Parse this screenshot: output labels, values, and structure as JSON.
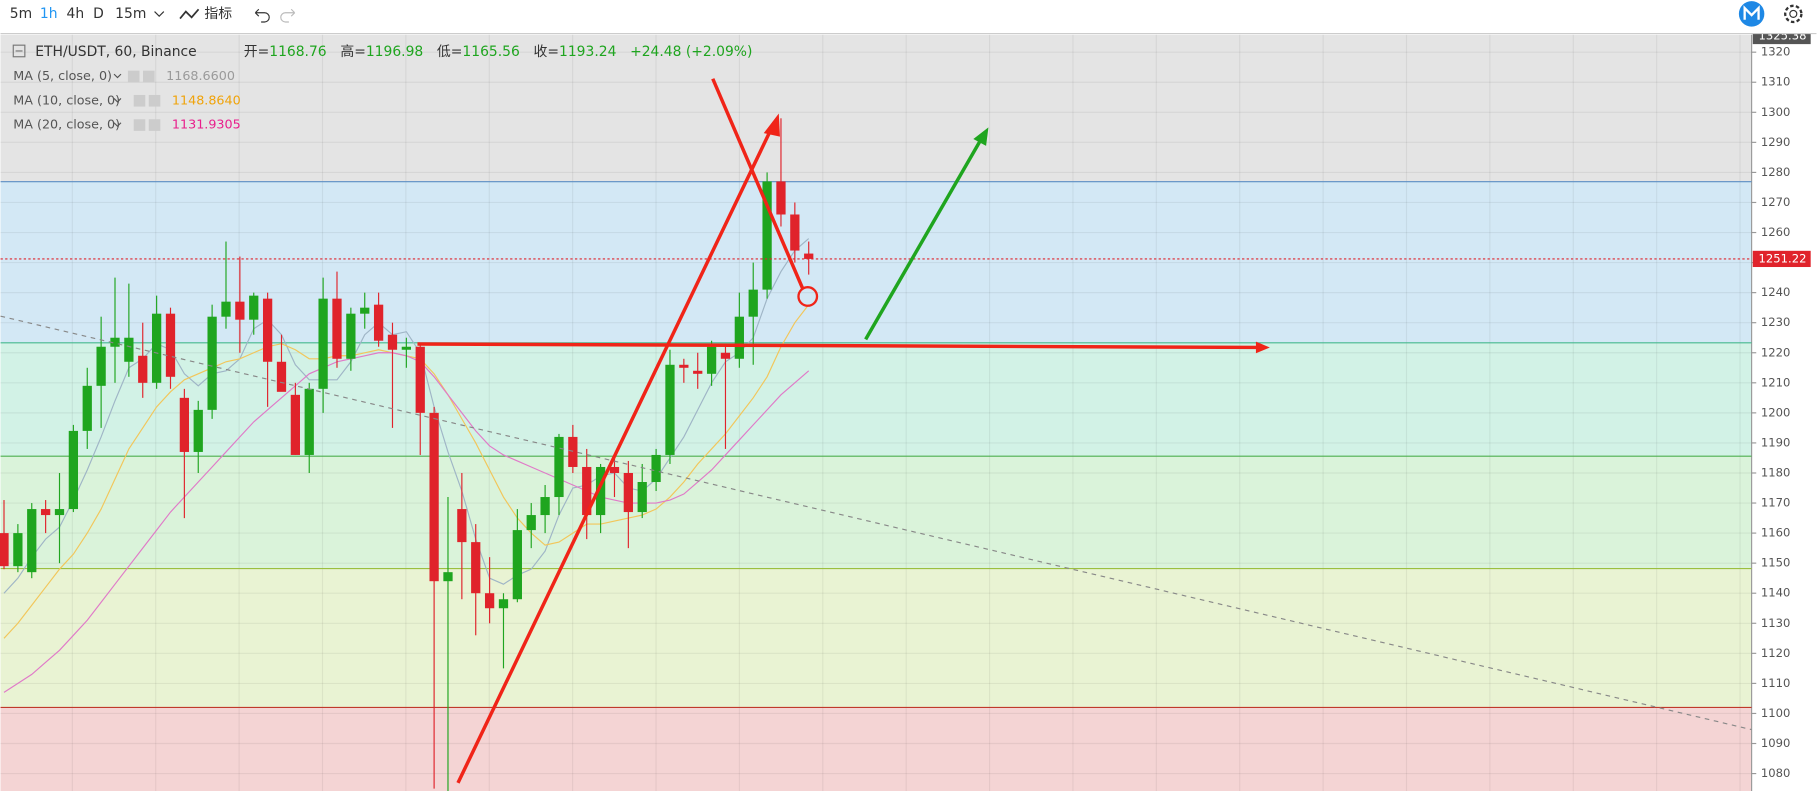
{
  "toolbar": {
    "intervals": [
      "5m",
      "1h",
      "4h",
      "D",
      "15m"
    ],
    "indicators": "指标"
  },
  "chart_data": {
    "type": "candlestick",
    "title": "ETH/USDT, 60, Binance",
    "readout": [
      {
        "label": "开=",
        "value": "1168.76"
      },
      {
        "label": "高=",
        "value": "1196.98"
      },
      {
        "label": "低=",
        "value": "1165.56"
      },
      {
        "label": "收=",
        "value": "1193.24"
      }
    ],
    "change": "+24.48 (+2.09%)",
    "up_color": "#1fa51f",
    "down_color": "#e0232b",
    "open": [
      1160,
      1149,
      1147,
      1168,
      1166,
      1168,
      1194,
      1209,
      1222,
      1217,
      1219,
      1210,
      1233,
      1205,
      1187,
      1201,
      1232,
      1237,
      1231,
      1238,
      1217,
      1206,
      1186,
      1208,
      1238,
      1218,
      1233,
      1236,
      1226,
      1221,
      1222,
      1200,
      1144,
      1168,
      1157,
      1140,
      1135,
      1138,
      1161,
      1166,
      1172,
      1192,
      1182,
      1166,
      1182,
      1180,
      1167,
      1177,
      1186,
      1216,
      1214,
      1213,
      1220,
      1218,
      1232,
      1241,
      1277,
      1266,
      1253
    ],
    "high": [
      1171,
      1163,
      1170,
      1171,
      1180,
      1196,
      1215,
      1232,
      1245,
      1243,
      1230,
      1239,
      1235,
      1208,
      1204,
      1236,
      1257,
      1252,
      1240,
      1240,
      1226,
      1210,
      1210,
      1245,
      1247,
      1235,
      1240,
      1240,
      1230,
      1225,
      1223,
      1202,
      1172,
      1180,
      1163,
      1152,
      1140,
      1168,
      1170,
      1176,
      1193,
      1196,
      1188,
      1183,
      1185,
      1184,
      1183,
      1188,
      1221,
      1218,
      1220,
      1224,
      1222,
      1240,
      1250,
      1280,
      1298,
      1270,
      1257
    ],
    "low": [
      1148,
      1147,
      1145,
      1160,
      1150,
      1167,
      1188,
      1195,
      1210,
      1212,
      1205,
      1208,
      1208,
      1165,
      1180,
      1198,
      1228,
      1220,
      1226,
      1202,
      1208,
      1186,
      1180,
      1200,
      1215,
      1214,
      1228,
      1222,
      1195,
      1215,
      1186,
      1075,
      1074,
      1138,
      1126,
      1130,
      1115,
      1137,
      1155,
      1160,
      1166,
      1180,
      1158,
      1160,
      1172,
      1155,
      1165,
      1174,
      1183,
      1210,
      1208,
      1209,
      1188,
      1215,
      1216,
      1238,
      1262,
      1250,
      1246
    ],
    "close": [
      1149,
      1160,
      1168,
      1166,
      1168,
      1194,
      1209,
      1222,
      1225,
      1225,
      1210,
      1233,
      1212,
      1187,
      1201,
      1232,
      1237,
      1231,
      1239,
      1217,
      1207,
      1186,
      1208,
      1238,
      1218,
      1233,
      1235,
      1224,
      1221,
      1222,
      1200,
      1144,
      1147,
      1157,
      1140,
      1135,
      1138,
      1161,
      1166,
      1172,
      1192,
      1182,
      1166,
      1182,
      1180,
      1167,
      1177,
      1186,
      1216,
      1215,
      1213,
      1222,
      1218,
      1232,
      1241,
      1277,
      1266,
      1254,
      1251.22
    ],
    "series": [
      {
        "name": "MA (5, close, 0)",
        "readout": "1168.6600",
        "color": "#9fb5c6",
        "readout_color": "#9a9a9a",
        "values": [
          1140,
          1145,
          1152,
          1158,
          1162,
          1171,
          1181,
          1192,
          1204,
          1215,
          1218,
          1223,
          1221,
          1213,
          1209,
          1213,
          1214,
          1218,
          1228,
          1231,
          1226,
          1216,
          1211,
          1211,
          1211,
          1217,
          1226,
          1230,
          1226,
          1227,
          1220,
          1202,
          1187,
          1174,
          1158,
          1145,
          1143,
          1146,
          1148,
          1154,
          1166,
          1175,
          1176,
          1179,
          1180,
          1175,
          1174,
          1178,
          1185,
          1192,
          1201,
          1210,
          1217,
          1220,
          1225,
          1238,
          1247,
          1254,
          1258
        ]
      },
      {
        "name": "MA (10, close, 0)",
        "readout": "1148.8640",
        "color": "#f2c65a",
        "readout_color": "#f0a30a",
        "values": [
          1125,
          1130,
          1136,
          1142,
          1148,
          1153,
          1160,
          1168,
          1178,
          1188,
          1195,
          1202,
          1207,
          1211,
          1213,
          1215,
          1217,
          1218,
          1220,
          1222,
          1223,
          1221,
          1218,
          1218,
          1219,
          1219,
          1220,
          1221,
          1220,
          1219,
          1218,
          1213,
          1206,
          1198,
          1190,
          1181,
          1172,
          1165,
          1160,
          1156,
          1157,
          1160,
          1163,
          1163,
          1164,
          1165,
          1166,
          1168,
          1172,
          1177,
          1183,
          1188,
          1193,
          1199,
          1205,
          1212,
          1222,
          1230,
          1236
        ]
      },
      {
        "name": "MA (20, close, 0)",
        "readout": "1131.9305",
        "color": "#e07ac8",
        "readout_color": "#e91e8c",
        "values": [
          1107,
          1110,
          1113,
          1117,
          1121,
          1126,
          1131,
          1137,
          1143,
          1149,
          1155,
          1161,
          1167,
          1172,
          1177,
          1182,
          1187,
          1192,
          1197,
          1201,
          1205,
          1209,
          1213,
          1215,
          1217,
          1218,
          1219,
          1220,
          1220,
          1219,
          1217,
          1212,
          1206,
          1200,
          1194,
          1189,
          1186,
          1184,
          1182,
          1180,
          1178,
          1176,
          1174,
          1172,
          1171,
          1170,
          1170,
          1170,
          1171,
          1173,
          1177,
          1181,
          1186,
          1191,
          1196,
          1201,
          1206,
          1210,
          1214
        ]
      }
    ],
    "levels": [
      1276.9,
      1223.3,
      1185.6,
      1148.2,
      1102
    ],
    "level_colors": [
      "#5b8ec4",
      "#46b98e",
      "#4caf50",
      "#9bbf3f",
      "#c0392b"
    ],
    "band_colors": [
      "#e4e4e4",
      "#d3e8f5",
      "#d2f2e6",
      "#daf3da",
      "#e9f3d3",
      "#f4d4d4"
    ],
    "last_price": 1251.22,
    "top_price": 1325.38,
    "ylim": [
      1074.2,
      1325.8
    ],
    "yticks": [
      1080,
      1090,
      1100,
      1110,
      1120,
      1130,
      1140,
      1150,
      1160,
      1170,
      1180,
      1190,
      1200,
      1210,
      1220,
      1230,
      1240,
      1250,
      1260,
      1270,
      1280,
      1290,
      1300,
      1310,
      1320
    ],
    "grid": true
  }
}
